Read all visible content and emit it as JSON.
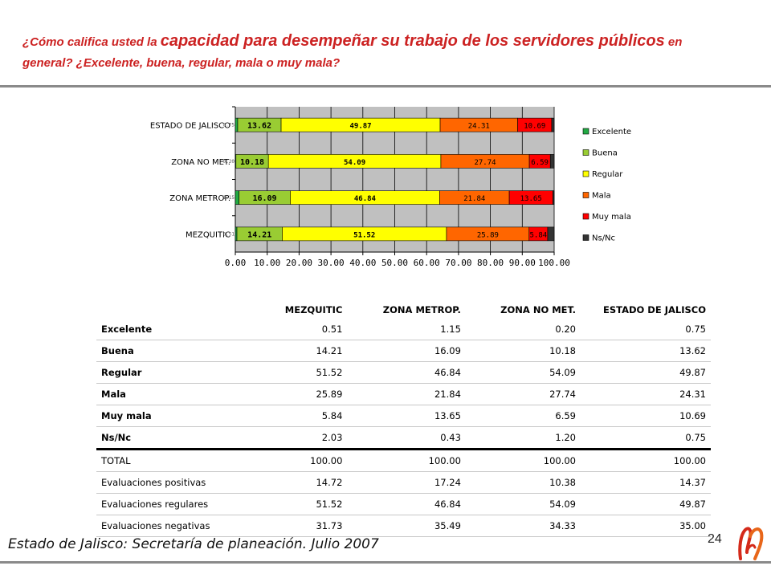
{
  "title": {
    "part1": "¿Cómo califica usted la ",
    "part2": "capacidad para desempeñar su trabajo de los servidores públicos",
    "part3": " en general? ¿Excelente, buena, regular, mala o muy mala?"
  },
  "chart_data": {
    "type": "bar",
    "orientation": "horizontal",
    "stacked": true,
    "categories": [
      "ESTADO DE JALISCO",
      "ZONA NO MET.",
      "ZONA METROP.",
      "MEZQUITIC"
    ],
    "series": [
      {
        "name": "Excelente",
        "color": "#22aa44",
        "values": [
          0.75,
          0.2,
          1.15,
          0.51
        ]
      },
      {
        "name": "Buena",
        "color": "#99cc33",
        "values": [
          13.62,
          10.18,
          16.09,
          14.21
        ]
      },
      {
        "name": "Regular",
        "color": "#ffff00",
        "values": [
          49.87,
          54.09,
          46.84,
          51.52
        ]
      },
      {
        "name": "Mala",
        "color": "#ff6600",
        "values": [
          24.31,
          27.74,
          21.84,
          25.89
        ]
      },
      {
        "name": "Muy mala",
        "color": "#ff0000",
        "values": [
          10.69,
          6.59,
          13.65,
          5.84
        ]
      },
      {
        "name": "Ns/Nc",
        "color": "#333333",
        "values": [
          0.75,
          1.2,
          0.43,
          2.03
        ]
      }
    ],
    "data_labels": [
      [
        "0.75",
        "13.62",
        "49.87",
        "24.31",
        "10.69",
        ""
      ],
      [
        "0.20",
        "10.18",
        "54.09",
        "27.74",
        "6.59",
        ""
      ],
      [
        "1.15",
        "16.09",
        "46.84",
        "21.84",
        "13.65",
        ""
      ],
      [
        "0.51",
        "14.21",
        "51.52",
        "25.89",
        "5.84",
        ""
      ]
    ],
    "xlim": [
      0,
      100
    ],
    "xticks": [
      "0.00",
      "10.00",
      "20.00",
      "30.00",
      "40.00",
      "50.00",
      "60.00",
      "70.00",
      "80.00",
      "90.00",
      "100.00"
    ],
    "grid": true,
    "legend": "right",
    "plot_background": "#c0c0c0"
  },
  "table": {
    "columns": [
      "",
      "MEZQUITIC",
      "ZONA METROP.",
      "ZONA NO MET.",
      "ESTADO DE JALISCO"
    ],
    "category_rows": [
      {
        "label": "Excelente",
        "values": [
          "0.51",
          "1.15",
          "0.20",
          "0.75"
        ]
      },
      {
        "label": "Buena",
        "values": [
          "14.21",
          "16.09",
          "10.18",
          "13.62"
        ]
      },
      {
        "label": "Regular",
        "values": [
          "51.52",
          "46.84",
          "54.09",
          "49.87"
        ]
      },
      {
        "label": "Mala",
        "values": [
          "25.89",
          "21.84",
          "27.74",
          "24.31"
        ]
      },
      {
        "label": "Muy mala",
        "values": [
          "5.84",
          "13.65",
          "6.59",
          "10.69"
        ]
      },
      {
        "label": "Ns/Nc",
        "values": [
          "2.03",
          "0.43",
          "1.20",
          "0.75"
        ]
      }
    ],
    "summary_rows": [
      {
        "label": "TOTAL",
        "values": [
          "100.00",
          "100.00",
          "100.00",
          "100.00"
        ]
      },
      {
        "label": "Evaluaciones positivas",
        "values": [
          "14.72",
          "17.24",
          "10.38",
          "14.37"
        ]
      },
      {
        "label": "Evaluaciones regulares",
        "values": [
          "51.52",
          "46.84",
          "54.09",
          "49.87"
        ]
      },
      {
        "label": "Evaluaciones negativas",
        "values": [
          "31.73",
          "35.49",
          "34.33",
          "35.00"
        ]
      }
    ]
  },
  "footer": {
    "source": "Estado de Jalisco: Secretaría de planeación. Julio 2007",
    "page_number": "24"
  }
}
